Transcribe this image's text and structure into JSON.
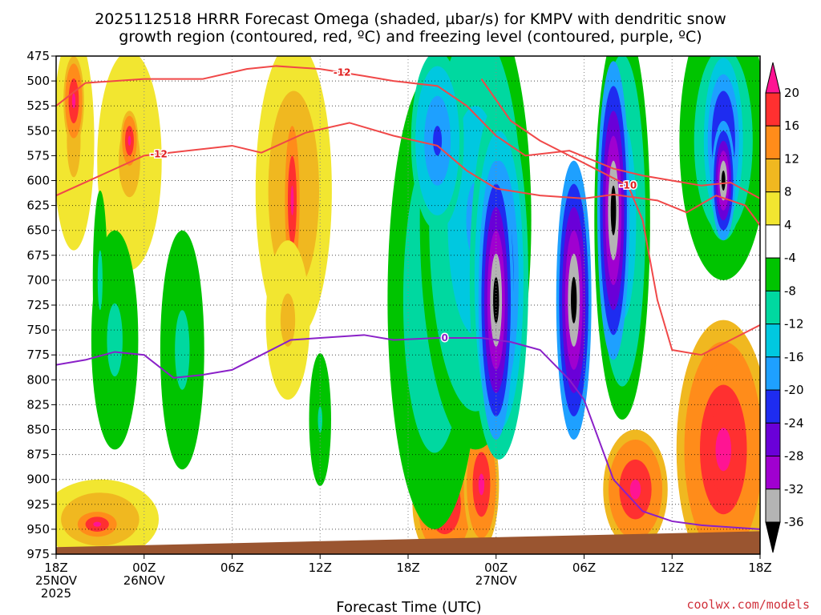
{
  "chart_data": {
    "type": "heatmap",
    "title_line1": "2025112518 HRRR Forecast Omega (shaded, µbar/s) for KMPV with dendritic snow",
    "title_line2": "growth region (contoured, red, ºC) and freezing level (contoured, purple, ºC)",
    "xlabel": "Forecast Time (UTC)",
    "credit": "coolwx.com/models",
    "x_range_hours": [
      0,
      48
    ],
    "y_range_hpa": [
      475,
      975
    ],
    "y_ticks": [
      475,
      500,
      525,
      550,
      575,
      600,
      625,
      650,
      675,
      700,
      725,
      750,
      775,
      800,
      825,
      850,
      875,
      900,
      925,
      950,
      975
    ],
    "x_ticks": [
      {
        "hour": 0,
        "lines": [
          "18Z",
          "25NOV",
          "2025"
        ]
      },
      {
        "hour": 6,
        "lines": [
          "00Z",
          "26NOV"
        ]
      },
      {
        "hour": 12,
        "lines": [
          "06Z"
        ]
      },
      {
        "hour": 18,
        "lines": [
          "12Z"
        ]
      },
      {
        "hour": 24,
        "lines": [
          "18Z"
        ]
      },
      {
        "hour": 30,
        "lines": [
          "00Z",
          "27NOV"
        ]
      },
      {
        "hour": 36,
        "lines": [
          "06Z"
        ]
      },
      {
        "hour": 42,
        "lines": [
          "12Z"
        ]
      },
      {
        "hour": 48,
        "lines": [
          "18Z"
        ]
      }
    ],
    "colorbar": {
      "labels": [
        "20",
        "16",
        "12",
        "8",
        "4",
        "-4",
        "-8",
        "-12",
        "-16",
        "-20",
        "-24",
        "-28",
        "-32",
        "-36"
      ],
      "colors": [
        "#ff1493",
        "#ff3030",
        "#ff8c1a",
        "#f0b820",
        "#f2e630",
        "#ffffff",
        "#00c400",
        "#00d8a0",
        "#00c8e0",
        "#1ea0ff",
        "#1e2cf0",
        "#6a00d8",
        "#a000d0",
        "#b4b4b4",
        "#000000"
      ]
    },
    "omega_blobs": [
      {
        "x": 1.2,
        "y": 560,
        "rx": 1.4,
        "ry": 110,
        "v": 10
      },
      {
        "x": 1.2,
        "y": 520,
        "rx": 0.7,
        "ry": 45,
        "v": 22
      },
      {
        "x": 5.0,
        "y": 580,
        "rx": 2.2,
        "ry": 110,
        "v": 10
      },
      {
        "x": 5.0,
        "y": 560,
        "rx": 0.6,
        "ry": 30,
        "v": 22
      },
      {
        "x": 16.2,
        "y": 610,
        "rx": 2.6,
        "ry": 150,
        "v": 12
      },
      {
        "x": 16.1,
        "y": 620,
        "rx": 0.6,
        "ry": 90,
        "v": 22
      },
      {
        "x": 15.8,
        "y": 740,
        "rx": 1.5,
        "ry": 80,
        "v": 10
      },
      {
        "x": 3.0,
        "y": 940,
        "rx": 4.0,
        "ry": 40,
        "v": 12
      },
      {
        "x": 2.8,
        "y": 945,
        "rx": 1.6,
        "ry": 15,
        "v": 22
      },
      {
        "x": 26.5,
        "y": 925,
        "rx": 2.2,
        "ry": 60,
        "v": 22
      },
      {
        "x": 29.0,
        "y": 905,
        "rx": 1.2,
        "ry": 65,
        "v": 22
      },
      {
        "x": 39.5,
        "y": 910,
        "rx": 2.2,
        "ry": 60,
        "v": 22
      },
      {
        "x": 45.5,
        "y": 870,
        "rx": 3.2,
        "ry": 130,
        "v": 22
      },
      {
        "x": 4.0,
        "y": 760,
        "rx": 1.6,
        "ry": 110,
        "v": -10
      },
      {
        "x": 8.6,
        "y": 770,
        "rx": 1.5,
        "ry": 120,
        "v": -10
      },
      {
        "x": 3.0,
        "y": 700,
        "rx": 0.5,
        "ry": 90,
        "v": -10
      },
      {
        "x": 18.0,
        "y": 840,
        "rx": 0.9,
        "ry": 80,
        "v": -8
      },
      {
        "x": 25.8,
        "y": 720,
        "rx": 3.2,
        "ry": 230,
        "v": -12
      },
      {
        "x": 28.6,
        "y": 640,
        "rx": 3.8,
        "ry": 230,
        "v": -16
      },
      {
        "x": 26.0,
        "y": 560,
        "rx": 1.8,
        "ry": 90,
        "v": -22
      },
      {
        "x": 30.2,
        "y": 700,
        "rx": 2.0,
        "ry": 180,
        "v": -26
      },
      {
        "x": 30.0,
        "y": 720,
        "rx": 1.2,
        "ry": 140,
        "v": -40
      },
      {
        "x": 35.3,
        "y": 720,
        "rx": 1.2,
        "ry": 140,
        "v": -40
      },
      {
        "x": 38.6,
        "y": 640,
        "rx": 1.9,
        "ry": 200,
        "v": -16
      },
      {
        "x": 38.0,
        "y": 630,
        "rx": 1.1,
        "ry": 150,
        "v": -40
      },
      {
        "x": 45.5,
        "y": 560,
        "rx": 3.0,
        "ry": 140,
        "v": -12
      },
      {
        "x": 45.5,
        "y": 560,
        "rx": 1.6,
        "ry": 100,
        "v": -26
      },
      {
        "x": 45.5,
        "y": 600,
        "rx": 0.8,
        "ry": 60,
        "v": -36
      }
    ],
    "dgz_lines": [
      {
        "label": "-12",
        "label_at": 7.0,
        "points": [
          [
            0,
            615
          ],
          [
            3,
            595
          ],
          [
            6,
            575
          ],
          [
            9,
            570
          ],
          [
            12,
            565
          ],
          [
            14,
            572
          ],
          [
            17,
            552
          ],
          [
            20,
            542
          ],
          [
            23,
            555
          ],
          [
            26,
            565
          ],
          [
            28,
            590
          ],
          [
            30,
            608
          ],
          [
            33,
            615
          ],
          [
            36,
            618
          ],
          [
            38,
            614
          ],
          [
            41,
            620
          ],
          [
            43,
            632
          ],
          [
            45,
            615
          ],
          [
            47,
            625
          ],
          [
            48,
            645
          ]
        ]
      },
      {
        "label": "-12",
        "label_at": 19.5,
        "points": [
          [
            0,
            525
          ],
          [
            2,
            502
          ],
          [
            6,
            498
          ],
          [
            10,
            498
          ],
          [
            13,
            488
          ],
          [
            15,
            485
          ],
          [
            18,
            488
          ],
          [
            21,
            495
          ],
          [
            23,
            500
          ],
          [
            26,
            505
          ],
          [
            28,
            525
          ],
          [
            30,
            555
          ],
          [
            32,
            575
          ],
          [
            35,
            570
          ],
          [
            38,
            588
          ],
          [
            40,
            595
          ],
          [
            42,
            600
          ],
          [
            44,
            605
          ],
          [
            46,
            602
          ],
          [
            48,
            618
          ]
        ]
      },
      {
        "label": "-10",
        "label_at": 39.0,
        "points": [
          [
            29,
            498
          ],
          [
            31,
            540
          ],
          [
            33,
            560
          ],
          [
            35,
            575
          ],
          [
            37,
            590
          ],
          [
            39,
            605
          ],
          [
            40,
            640
          ],
          [
            41,
            720
          ],
          [
            42,
            770
          ],
          [
            44,
            775
          ],
          [
            46,
            760
          ],
          [
            48,
            745
          ]
        ]
      }
    ],
    "freezing_line": {
      "label": "0",
      "label_at": 26.5,
      "points": [
        [
          0,
          785
        ],
        [
          2,
          780
        ],
        [
          4,
          772
        ],
        [
          6,
          775
        ],
        [
          8,
          798
        ],
        [
          10,
          795
        ],
        [
          12,
          790
        ],
        [
          14,
          775
        ],
        [
          16,
          760
        ],
        [
          18,
          758
        ],
        [
          21,
          755
        ],
        [
          23,
          760
        ],
        [
          26,
          758
        ],
        [
          29,
          758
        ],
        [
          31,
          762
        ],
        [
          33,
          770
        ],
        [
          35,
          800
        ],
        [
          36,
          820
        ],
        [
          37,
          860
        ],
        [
          38,
          900
        ],
        [
          40,
          932
        ],
        [
          42,
          942
        ],
        [
          44,
          946
        ],
        [
          48,
          950
        ]
      ]
    }
  }
}
